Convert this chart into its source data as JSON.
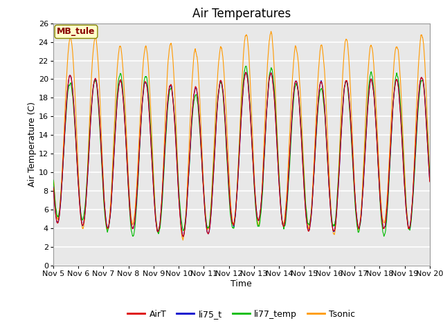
{
  "title": "Air Temperatures",
  "xlabel": "Time",
  "ylabel": "Air Temperature (C)",
  "ylim": [
    0,
    26
  ],
  "yticks": [
    0,
    2,
    4,
    6,
    8,
    10,
    12,
    14,
    16,
    18,
    20,
    22,
    24,
    26
  ],
  "x_labels": [
    "Nov 5",
    "Nov 6",
    "Nov 7",
    "Nov 8",
    "Nov 9",
    "Nov 10",
    "Nov 11",
    "Nov 12",
    "Nov 13",
    "Nov 14",
    "Nov 15",
    "Nov 16",
    "Nov 17",
    "Nov 18",
    "Nov 19",
    "Nov 20"
  ],
  "series_colors": {
    "AirT": "#dd0000",
    "li75_t": "#0000cc",
    "li77_temp": "#00bb00",
    "Tsonic": "#ff9900"
  },
  "annotation_text": "MB_tule",
  "annotation_color": "#880000",
  "annotation_bg": "#ffffcc",
  "plot_bg": "#e8e8e8",
  "fig_bg": "#ffffff",
  "title_fontsize": 12,
  "axis_fontsize": 9,
  "tick_fontsize": 8,
  "legend_fontsize": 9
}
